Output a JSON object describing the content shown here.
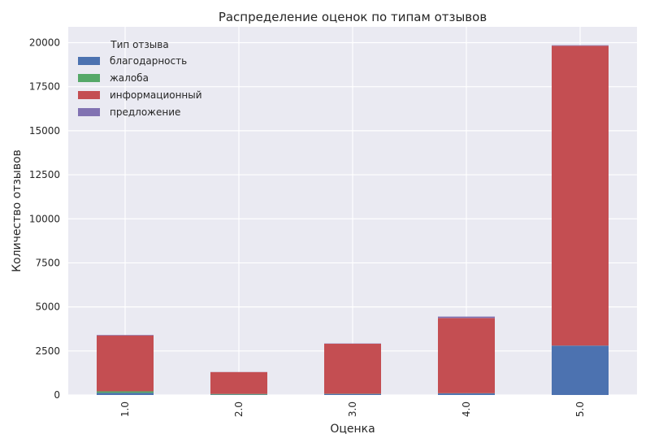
{
  "chart_data": {
    "type": "bar",
    "stacked": true,
    "title": "Распределение оценок по типам отзывов",
    "xlabel": "Оценка",
    "ylabel": "Количество отзывов",
    "categories": [
      "1.0",
      "2.0",
      "3.0",
      "4.0",
      "5.0"
    ],
    "ylim": [
      0,
      20900
    ],
    "yticks": [
      0,
      2500,
      5000,
      7500,
      10000,
      12500,
      15000,
      17500,
      20000
    ],
    "grid": true,
    "legend": {
      "title": "Тип отзыва",
      "placement": "top-left"
    },
    "series": [
      {
        "name": "благодарность",
        "color": "#4c72b0",
        "values": [
          120,
          20,
          60,
          90,
          2800
        ]
      },
      {
        "name": "жалоба",
        "color": "#55a868",
        "values": [
          90,
          40,
          10,
          10,
          5
        ]
      },
      {
        "name": "информационный",
        "color": "#c44e52",
        "values": [
          3170,
          1240,
          2840,
          4270,
          17020
        ]
      },
      {
        "name": "предложение",
        "color": "#8172b2",
        "values": [
          30,
          5,
          15,
          80,
          30
        ]
      }
    ]
  }
}
